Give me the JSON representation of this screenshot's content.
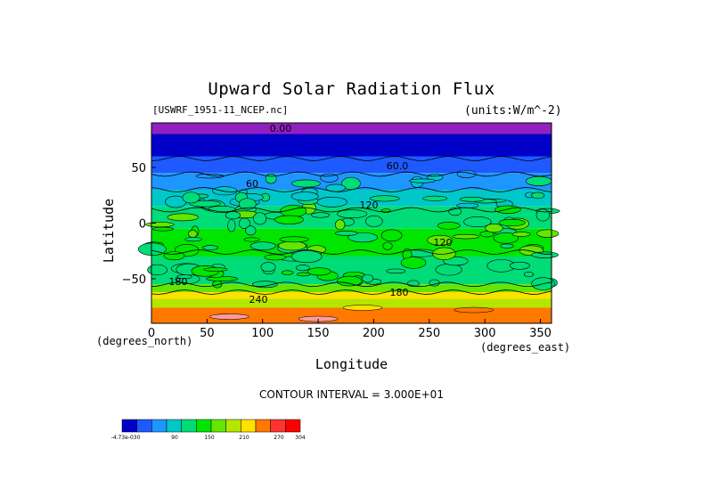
{
  "chart_data": {
    "type": "heatmap",
    "title": "Upward Solar Radiation Flux",
    "file_label": "[USWRF_1951-11_NCEP.nc]",
    "units_label": "(units:W/m^-2)",
    "xlabel": "Longitude",
    "ylabel": "Latitude",
    "x_units": "(degrees_north)",
    "x_units_right": "(degrees_east)",
    "xlim": [
      0,
      360
    ],
    "ylim": [
      -90,
      90
    ],
    "x_ticks": [
      0,
      50,
      100,
      150,
      200,
      250,
      300,
      350
    ],
    "y_ticks": [
      50,
      0,
      -50
    ],
    "contour_interval_text": "CONTOUR INTERVAL = 3.000E+01",
    "contour_labels": [
      "0.00",
      "60.0",
      "60",
      "120",
      "120",
      "180",
      "180",
      "240"
    ],
    "latitude_bands": [
      {
        "lat_top": 90,
        "lat_bottom": 80,
        "level": 0
      },
      {
        "lat_top": 80,
        "lat_bottom": 60,
        "level": 1
      },
      {
        "lat_top": 60,
        "lat_bottom": 45,
        "level": 2
      },
      {
        "lat_top": 45,
        "lat_bottom": 30,
        "level": 3
      },
      {
        "lat_top": 30,
        "lat_bottom": 15,
        "level": 4
      },
      {
        "lat_top": 15,
        "lat_bottom": -5,
        "level": 5
      },
      {
        "lat_top": -5,
        "lat_bottom": -30,
        "level": 6
      },
      {
        "lat_top": -30,
        "lat_bottom": -55,
        "level": 5
      },
      {
        "lat_top": -55,
        "lat_bottom": -62,
        "level": 7
      },
      {
        "lat_top": -62,
        "lat_bottom": -68,
        "level": 9
      },
      {
        "lat_top": -68,
        "lat_bottom": -76,
        "level": 8
      },
      {
        "lat_top": -76,
        "lat_bottom": -90,
        "level": 10
      }
    ],
    "colorbar": {
      "colors": [
        "#0000c8",
        "#1e5aff",
        "#1e96ff",
        "#00c8c8",
        "#00dc78",
        "#00e600",
        "#64e600",
        "#b4e600",
        "#ffe100",
        "#ff7800",
        "#ff3232",
        "#ff0000"
      ],
      "tick_labels": [
        "-4.73e-030",
        "90",
        "150",
        "210",
        "270",
        "304"
      ]
    },
    "grid": false,
    "legend": "none"
  }
}
